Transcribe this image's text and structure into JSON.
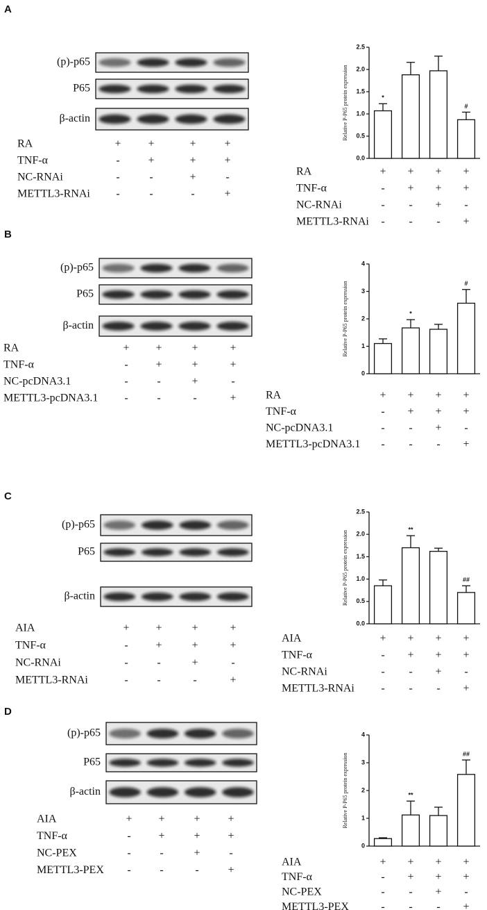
{
  "panels": [
    {
      "label": "A",
      "blot_rows": [
        "(p)-p65",
        "P65",
        "β-actin"
      ],
      "conditions": [
        {
          "name": "RA",
          "signs": [
            "+",
            "+",
            "+",
            "+"
          ]
        },
        {
          "name": "TNF-α",
          "signs": [
            "-",
            "+",
            "+",
            "+"
          ]
        },
        {
          "name": "NC-RNAi",
          "signs": [
            "-",
            "-",
            "+",
            "-"
          ]
        },
        {
          "name": "METTL3-RNAi",
          "signs": [
            "-",
            "-",
            "-",
            "+"
          ]
        }
      ]
    },
    {
      "label": "B",
      "blot_rows": [
        "(p)-p65",
        "P65",
        "β-actin"
      ],
      "conditions": [
        {
          "name": "RA",
          "signs": [
            "+",
            "+",
            "+",
            "+"
          ]
        },
        {
          "name": "TNF-α",
          "signs": [
            "-",
            "+",
            "+",
            "+"
          ]
        },
        {
          "name": "NC-pcDNA3.1",
          "signs": [
            "-",
            "-",
            "+",
            "-"
          ]
        },
        {
          "name": "METTL3-pcDNA3.1",
          "signs": [
            "-",
            "-",
            "-",
            "+"
          ]
        }
      ]
    },
    {
      "label": "C",
      "blot_rows": [
        "(p)-p65",
        "P65",
        "β-actin"
      ],
      "conditions": [
        {
          "name": "AIA",
          "signs": [
            "+",
            "+",
            "+",
            "+"
          ]
        },
        {
          "name": "TNF-α",
          "signs": [
            "-",
            "+",
            "+",
            "+"
          ]
        },
        {
          "name": "NC-RNAi",
          "signs": [
            "-",
            "-",
            "+",
            "-"
          ]
        },
        {
          "name": "METTL3-RNAi",
          "signs": [
            "-",
            "-",
            "-",
            "+"
          ]
        }
      ]
    },
    {
      "label": "D",
      "blot_rows": [
        "(p)-p65",
        "P65",
        "β-actin"
      ],
      "conditions": [
        {
          "name": "AIA",
          "signs": [
            "+",
            "+",
            "+",
            "+"
          ]
        },
        {
          "name": "TNF-α",
          "signs": [
            "-",
            "+",
            "+",
            "+"
          ]
        },
        {
          "name": "NC-PEX",
          "signs": [
            "-",
            "-",
            "+",
            "-"
          ]
        },
        {
          "name": "METTL3-PEX",
          "signs": [
            "-",
            "-",
            "-",
            "+"
          ]
        }
      ]
    }
  ],
  "chart_data": [
    {
      "type": "bar",
      "ylabel": "Relative P-P65 protein expression",
      "color": "#ffffff",
      "values": [
        1.07,
        1.88,
        1.97,
        0.87
      ],
      "errors": [
        0.16,
        0.28,
        0.33,
        0.17
      ],
      "annotations": [
        "*",
        null,
        null,
        "#"
      ],
      "ylim": [
        0,
        2.5
      ],
      "yticks": [
        {
          "value": 0,
          "label": "0.0"
        },
        0.5,
        {
          "value": 1,
          "label": "1.0"
        },
        1.5,
        {
          "value": 2,
          "label": "2.0"
        },
        2.5
      ]
    },
    {
      "type": "bar",
      "ylabel": "Relative P-P65 protein expression",
      "color": "#ffffff",
      "values": [
        1.1,
        1.67,
        1.62,
        2.57
      ],
      "errors": [
        0.17,
        0.3,
        0.18,
        0.5
      ],
      "annotations": [
        null,
        "*",
        null,
        "#"
      ],
      "ylim": [
        0,
        4
      ],
      "yticks": [
        0,
        1,
        2,
        3,
        4
      ]
    },
    {
      "type": "bar",
      "ylabel": "Relative P-P65 protein expression",
      "color": "#ffffff",
      "values": [
        0.85,
        1.7,
        1.62,
        0.7
      ],
      "errors": [
        0.13,
        0.27,
        0.07,
        0.15
      ],
      "annotations": [
        null,
        "**",
        null,
        "##"
      ],
      "ylim": [
        0,
        2.5
      ],
      "yticks": [
        {
          "value": 0,
          "label": "0.0"
        },
        0.5,
        {
          "value": 1,
          "label": "1.0"
        },
        1.5,
        {
          "value": 2,
          "label": "2.0"
        },
        2.5
      ]
    },
    {
      "type": "bar",
      "ylabel": "Relative P-P65 protein expression",
      "color": "#ffffff",
      "values": [
        0.27,
        1.12,
        1.1,
        2.58
      ],
      "errors": [
        0.03,
        0.5,
        0.3,
        0.52
      ],
      "annotations": [
        null,
        "**",
        null,
        "##"
      ],
      "ylim": [
        0,
        4
      ],
      "yticks": [
        0,
        1,
        2,
        3,
        4
      ]
    }
  ]
}
